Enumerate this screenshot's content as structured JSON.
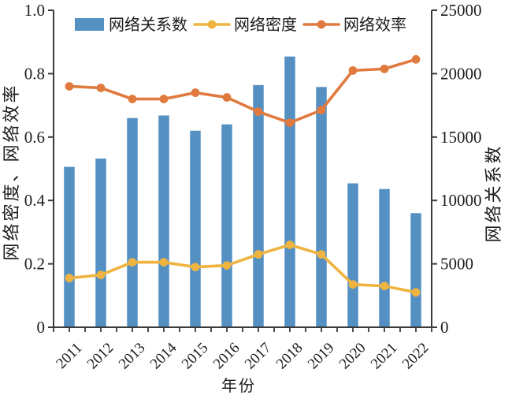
{
  "chart_data": {
    "type": "bar+line",
    "title": "",
    "categories": [
      "2011",
      "2012",
      "2013",
      "2014",
      "2015",
      "2016",
      "2017",
      "2018",
      "2019",
      "2020",
      "2021",
      "2022"
    ],
    "series": [
      {
        "name": "网络关系数",
        "slug": "relations-bars",
        "type": "bar",
        "axis": "right",
        "color": "#5590c3",
        "values": [
          12650,
          13300,
          16500,
          16700,
          15500,
          16000,
          19100,
          21350,
          18950,
          11350,
          10900,
          9000
        ]
      },
      {
        "name": "网络密度",
        "slug": "density-line",
        "type": "line",
        "axis": "left",
        "color": "#efb440",
        "values": [
          0.155,
          0.165,
          0.205,
          0.205,
          0.19,
          0.195,
          0.23,
          0.26,
          0.23,
          0.135,
          0.13,
          0.11
        ]
      },
      {
        "name": "网络效率",
        "slug": "efficiency-line",
        "type": "line",
        "axis": "left",
        "color": "#e07a3e",
        "values": [
          0.76,
          0.755,
          0.72,
          0.72,
          0.74,
          0.725,
          0.68,
          0.645,
          0.685,
          0.81,
          0.815,
          0.845
        ]
      }
    ],
    "xlabel": "年份",
    "ylabel_left": "网络密度、网络效率",
    "ylabel_right": "网络关系数",
    "ylim_left": [
      0,
      1.0
    ],
    "ylim_right": [
      0,
      25000
    ],
    "yticks_left": [
      0,
      0.2,
      0.4,
      0.6,
      0.8,
      1.0
    ],
    "ytick_labels_left": [
      "0",
      "0.2",
      "0.4",
      "0.6",
      "0.8",
      "1.0"
    ],
    "yticks_right": [
      0,
      5000,
      10000,
      15000,
      20000,
      25000
    ],
    "ytick_labels_right": [
      "0",
      "5000",
      "10000",
      "15000",
      "20000",
      "25000"
    ],
    "grid": false,
    "legend_position": "top-center-inside",
    "axis_color": "#3a3a3a",
    "text_color": "#1c1c1c"
  }
}
